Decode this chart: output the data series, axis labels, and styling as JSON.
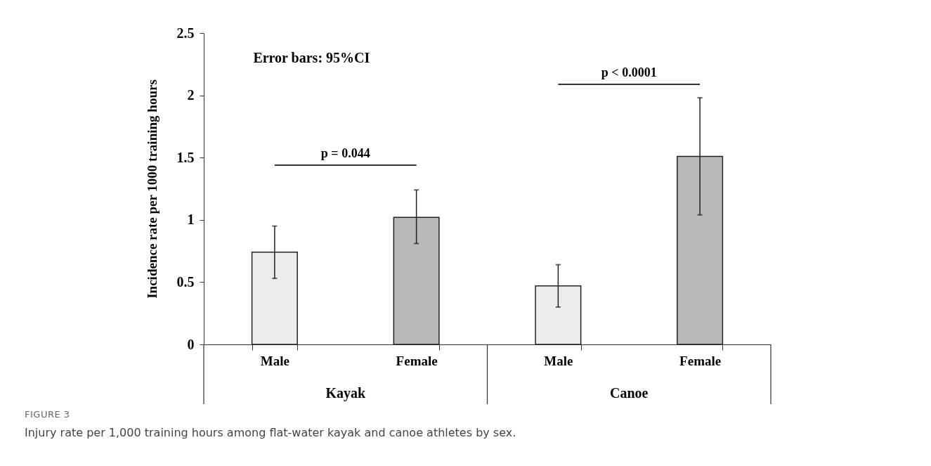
{
  "chart_data": {
    "type": "bar",
    "categories": [
      "Male",
      "Female",
      "Male",
      "Female"
    ],
    "values": [
      0.74,
      1.02,
      0.47,
      1.51
    ],
    "errors": [
      [
        0.53,
        0.95
      ],
      [
        0.81,
        1.24
      ],
      [
        0.3,
        0.64
      ],
      [
        1.04,
        1.98
      ]
    ],
    "colors": [
      "#ececec",
      "#b9b9b9",
      "#ececec",
      "#b9b9b9"
    ],
    "ylabel": "Incidence rate per 1000 training hours",
    "ylim": [
      0,
      2.5
    ],
    "yticks": [
      0,
      0.5,
      1,
      1.5,
      2,
      2.5
    ],
    "annotations": [
      "Error bars: 95%CI",
      "p = 0.044",
      "p < 0.0001",
      "Kayak",
      "Canoe",
      "FIGURE 3",
      "Injury rate per 1,000 training hours among flat-water kayak and canoe athletes by sex."
    ]
  }
}
